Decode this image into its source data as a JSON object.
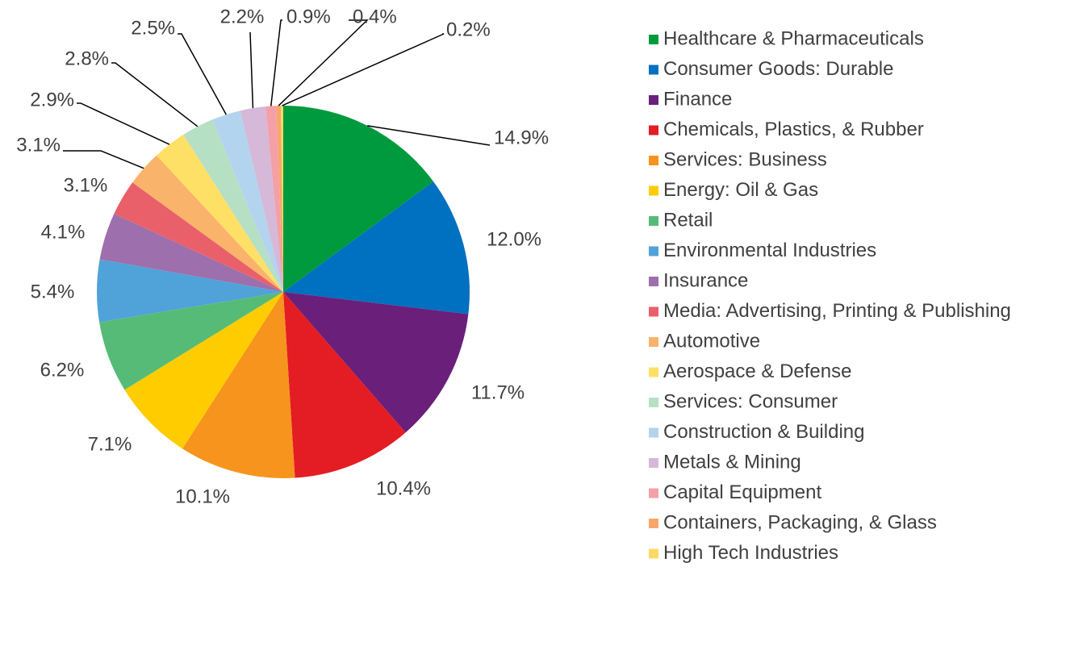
{
  "chart_data": {
    "type": "pie",
    "categories": [
      "Healthcare & Pharmaceuticals",
      "Consumer Goods: Durable",
      "Finance",
      "Chemicals, Plastics, & Rubber",
      "Services: Business",
      "Energy: Oil & Gas",
      "Retail",
      "Environmental Industries",
      "Insurance",
      "Media: Advertising, Printing & Publishing",
      "Automotive",
      "Aerospace & Defense",
      "Services: Consumer",
      "Construction & Building",
      "Metals & Mining",
      "Capital Equipment",
      "Containers, Packaging, & Glass",
      "High Tech Industries"
    ],
    "values": [
      14.9,
      12.0,
      11.7,
      10.4,
      10.1,
      7.1,
      6.2,
      5.4,
      4.1,
      3.1,
      3.1,
      2.9,
      2.8,
      2.5,
      2.2,
      0.9,
      0.4,
      0.2
    ],
    "value_labels": [
      "14.9%",
      "12.0%",
      "11.7%",
      "10.4%",
      "10.1%",
      "7.1%",
      "6.2%",
      "5.4%",
      "4.1%",
      "3.1%",
      "3.1%",
      "2.9%",
      "2.8%",
      "2.5%",
      "2.2%",
      "0.9%",
      "0.4%",
      "0.2%"
    ],
    "colors": [
      "#009a3e",
      "#0070c0",
      "#6a1f7a",
      "#e31d23",
      "#f7941d",
      "#ffcc00",
      "#57bb78",
      "#4fa3d8",
      "#9e6fad",
      "#e9606a",
      "#f9b36b",
      "#ffe066",
      "#b5e0c4",
      "#b3d4ee",
      "#d6b8d8",
      "#f4a0a6",
      "#f7a76b",
      "#ffd966"
    ],
    "legend": "right"
  }
}
